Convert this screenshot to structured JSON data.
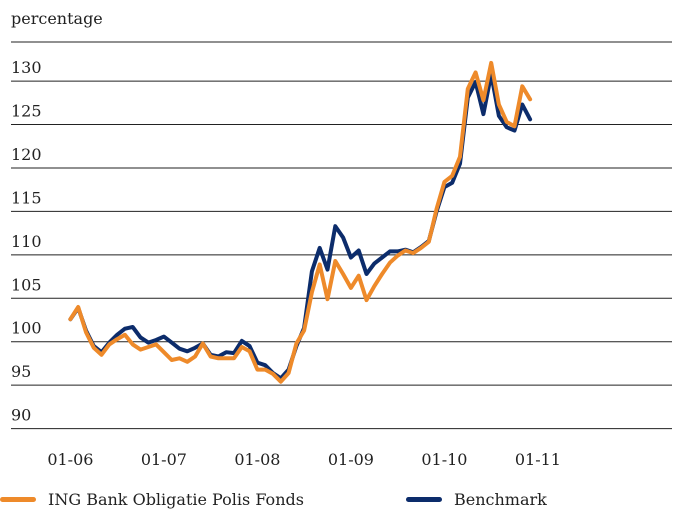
{
  "chart_data": {
    "type": "line",
    "ylabel": "percentage",
    "ylim": [
      88,
      133
    ],
    "y_ticks": [
      90,
      95,
      100,
      105,
      110,
      115,
      120,
      125,
      130
    ],
    "x_tick_labels": [
      "01-06",
      "01-07",
      "01-08",
      "01-09",
      "01-10",
      "01-11"
    ],
    "x_tick_positions": [
      0,
      12,
      24,
      36,
      48,
      60
    ],
    "xlim": [
      -3,
      74
    ],
    "grid": "horizontal",
    "legend": "bottom",
    "series": [
      {
        "name": "ING Bank Obligatie Polis Fonds",
        "color": "#EE8A2A",
        "x": [
          0,
          1,
          2,
          3,
          4,
          5,
          6,
          7,
          8,
          9,
          10,
          11,
          12,
          13,
          14,
          15,
          16,
          17,
          18,
          19,
          20,
          21,
          22,
          23,
          24,
          25,
          26,
          27,
          28,
          29,
          30,
          31,
          32,
          33,
          34,
          35,
          36,
          37,
          38,
          39,
          40,
          41,
          42,
          43,
          44,
          45,
          46,
          47,
          48,
          49,
          50,
          51,
          52,
          53,
          54,
          55,
          56,
          57,
          58,
          59,
          60,
          61,
          62
        ],
        "values": [
          101.1,
          102.5,
          99.6,
          97.8,
          97.0,
          98.2,
          98.8,
          99.3,
          98.2,
          97.6,
          97.9,
          98.2,
          97.3,
          96.4,
          96.6,
          96.2,
          96.8,
          98.3,
          96.8,
          96.6,
          96.6,
          96.6,
          97.9,
          97.4,
          95.3,
          95.3,
          94.8,
          93.9,
          94.9,
          98.3,
          99.8,
          104.2,
          107.4,
          103.4,
          107.8,
          106.3,
          104.7,
          106.1,
          103.3,
          104.9,
          106.3,
          107.6,
          108.4,
          109.0,
          108.7,
          109.3,
          110.0,
          113.8,
          116.9,
          117.6,
          119.8,
          127.6,
          129.5,
          126.3,
          130.6,
          125.8,
          123.8,
          123.3,
          127.9,
          126.4,
          null,
          null,
          null
        ]
      },
      {
        "name": "Benchmark",
        "color": "#0C2C6B",
        "x": [
          0,
          1,
          2,
          3,
          4,
          5,
          6,
          7,
          8,
          9,
          10,
          11,
          12,
          13,
          14,
          15,
          16,
          17,
          18,
          19,
          20,
          21,
          22,
          23,
          24,
          25,
          26,
          27,
          28,
          29,
          30,
          31,
          32,
          33,
          34,
          35,
          36,
          37,
          38,
          39,
          40,
          41,
          42,
          43,
          44,
          45,
          46,
          47,
          48,
          49,
          50,
          51,
          52,
          53,
          54,
          55,
          56,
          57,
          58,
          59,
          60,
          61,
          62
        ],
        "values": [
          101.1,
          102.4,
          99.8,
          98.0,
          97.3,
          98.4,
          99.3,
          100.0,
          100.2,
          99.0,
          98.4,
          98.7,
          99.1,
          98.4,
          97.7,
          97.4,
          97.8,
          98.3,
          97.0,
          96.8,
          97.3,
          97.2,
          98.6,
          98.0,
          96.1,
          95.8,
          94.9,
          94.3,
          95.3,
          98.0,
          100.1,
          106.6,
          109.3,
          106.8,
          111.8,
          110.5,
          108.2,
          109.0,
          106.3,
          107.5,
          108.2,
          108.9,
          108.9,
          109.1,
          108.8,
          109.4,
          110.1,
          113.5,
          116.3,
          116.8,
          119.0,
          126.6,
          128.4,
          124.7,
          129.3,
          124.5,
          123.2,
          122.8,
          125.8,
          124.1,
          null,
          null,
          null
        ]
      }
    ]
  }
}
